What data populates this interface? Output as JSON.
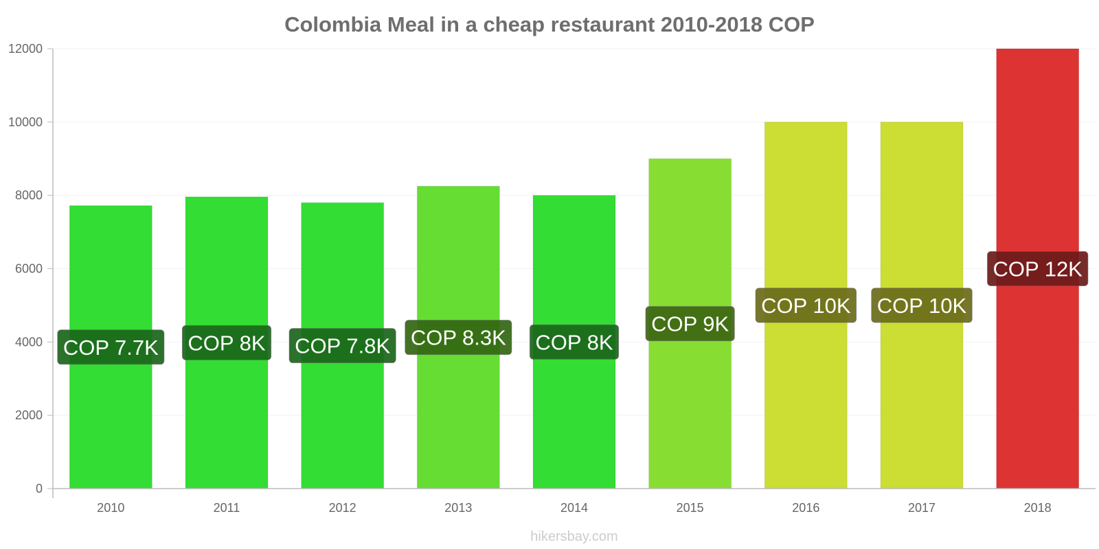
{
  "chart_data": {
    "type": "bar",
    "title": "Colombia Meal in a cheap restaurant 2010-2018 COP",
    "xlabel": "",
    "ylabel": "",
    "categories": [
      "2010",
      "2011",
      "2012",
      "2013",
      "2014",
      "2015",
      "2016",
      "2017",
      "2018"
    ],
    "values": [
      7720,
      7960,
      7800,
      8250,
      8000,
      9000,
      10000,
      10000,
      12000
    ],
    "data_labels": [
      "COP 7.7K",
      "COP 8K",
      "COP 7.8K",
      "COP 8.3K",
      "COP 8K",
      "COP 9K",
      "COP 10K",
      "COP 10K",
      "COP 12K"
    ],
    "bar_colors": [
      "#33dd33",
      "#33dd33",
      "#33dd33",
      "#66dd33",
      "#33dd33",
      "#88dd33",
      "#ccdd33",
      "#ccdd33",
      "#dd3333"
    ],
    "label_backgrounds": [
      "#1a661a",
      "#1a661a",
      "#1a661a",
      "#336611",
      "#1a661a",
      "#3d6611",
      "#6b6b1a",
      "#6b6b1a",
      "#6b1a1a"
    ],
    "yticks": [
      0,
      2000,
      4000,
      6000,
      8000,
      10000,
      12000
    ],
    "ylim": [
      0,
      12000
    ],
    "grid": true,
    "legend": "none"
  },
  "source_text": "hikersbay.com"
}
